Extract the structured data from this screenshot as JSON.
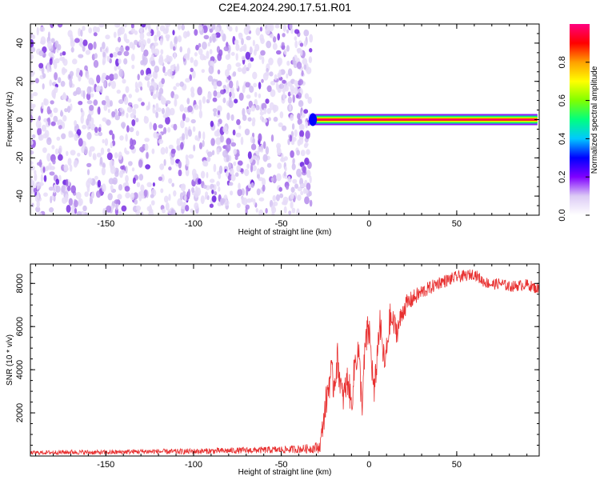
{
  "title": "C2E4.2024.290.17.51.R01",
  "chart_data": [
    {
      "type": "heatmap",
      "xlabel": "Height of straight line (km)",
      "ylabel": "Frequency (Hz)",
      "xlim": [
        -193,
        97
      ],
      "ylim": [
        -50,
        50
      ],
      "xticks": [
        -150,
        -100,
        -50,
        0,
        50
      ],
      "yticks": [
        -40,
        -20,
        0,
        20,
        40
      ],
      "noise_region_x": [
        -193,
        -33
      ],
      "noise_level": 0.2,
      "tone": {
        "frequency": 0,
        "x_start": -32,
        "x_end": 96,
        "amplitude": 0.95,
        "edge_amplitude": 0.2
      },
      "colorbar": {
        "label": "Normalized spectral amplitude",
        "range": [
          0,
          1
        ],
        "ticks": [
          "0.0",
          "0.2",
          "0.4",
          "0.6",
          "0.8"
        ],
        "colors": [
          "#ffffff",
          "#dccbf5",
          "#8000ff",
          "#0000ff",
          "#00c8ff",
          "#00ff80",
          "#80ff00",
          "#ffff00",
          "#ffa000",
          "#ff0000",
          "#ff0080"
        ]
      }
    },
    {
      "type": "line",
      "xlabel": "Height of straight line (km)",
      "ylabel": "SNR (10 * v/v)",
      "xlim": [
        -193,
        97
      ],
      "ylim": [
        0,
        8900
      ],
      "xticks": [
        -150,
        -100,
        -50,
        0,
        50
      ],
      "yticks": [
        2000,
        4000,
        6000,
        8000
      ],
      "color": "#e83030",
      "x": [
        -193,
        -170,
        -150,
        -130,
        -110,
        -90,
        -70,
        -50,
        -40,
        -33,
        -28,
        -25,
        -22,
        -20,
        -18,
        -15,
        -12,
        -10,
        -8,
        -6,
        -4,
        -2,
        0,
        3,
        6,
        9,
        12,
        16,
        20,
        25,
        30,
        35,
        40,
        45,
        50,
        55,
        60,
        65,
        70,
        75,
        80,
        85,
        90,
        96
      ],
      "y": [
        150,
        180,
        160,
        210,
        200,
        230,
        260,
        290,
        320,
        350,
        420,
        2200,
        3800,
        3300,
        4500,
        2600,
        3600,
        2300,
        4400,
        4900,
        2300,
        5200,
        5900,
        2800,
        6200,
        4100,
        6400,
        5800,
        6900,
        7300,
        7600,
        7800,
        8050,
        8150,
        8300,
        8350,
        8450,
        8100,
        7950,
        8000,
        7850,
        7900,
        7950,
        7750
      ],
      "amp": [
        90,
        110,
        110,
        120,
        130,
        140,
        150,
        170,
        190,
        220,
        300,
        700,
        900,
        800,
        800,
        700,
        800,
        700,
        800,
        900,
        700,
        900,
        900,
        700,
        800,
        700,
        700,
        600,
        500,
        400,
        350,
        320,
        300,
        300,
        280,
        260,
        260,
        260,
        260,
        260,
        260,
        260,
        260,
        260
      ]
    }
  ]
}
